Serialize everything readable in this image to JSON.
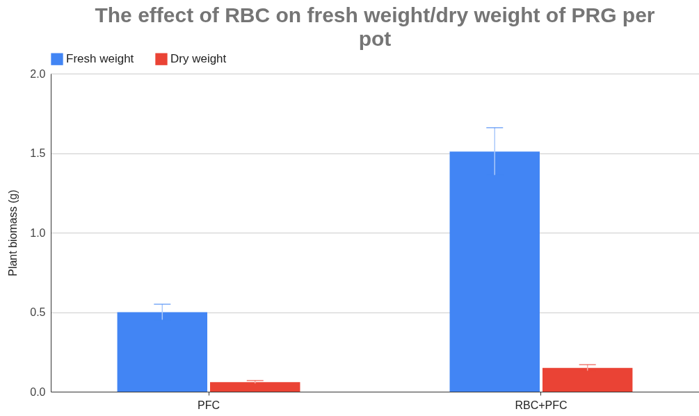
{
  "chart_data": {
    "type": "bar",
    "title": "The effect of RBC on fresh weight/dry weight of PRG per pot",
    "ylabel": "Plant biomass (g)",
    "categories": [
      "PFC",
      "RBC+PFC"
    ],
    "series": [
      {
        "name": "Fresh weight",
        "color": "#4285f4",
        "values": [
          0.5,
          1.51
        ],
        "errors": [
          0.05,
          0.15
        ]
      },
      {
        "name": "Dry weight",
        "color": "#ea4335",
        "values": [
          0.06,
          0.15
        ],
        "errors": [
          0.01,
          0.02
        ]
      }
    ],
    "ylim": [
      0,
      2
    ],
    "yticks": [
      {
        "value": 0,
        "label": "0.0"
      },
      {
        "value": 0.5,
        "label": "0.5"
      },
      {
        "value": 1,
        "label": "1.0"
      },
      {
        "value": 1.5,
        "label": "1.5"
      },
      {
        "value": 2,
        "label": "2.0"
      }
    ],
    "grid": "y",
    "legend": "top"
  }
}
